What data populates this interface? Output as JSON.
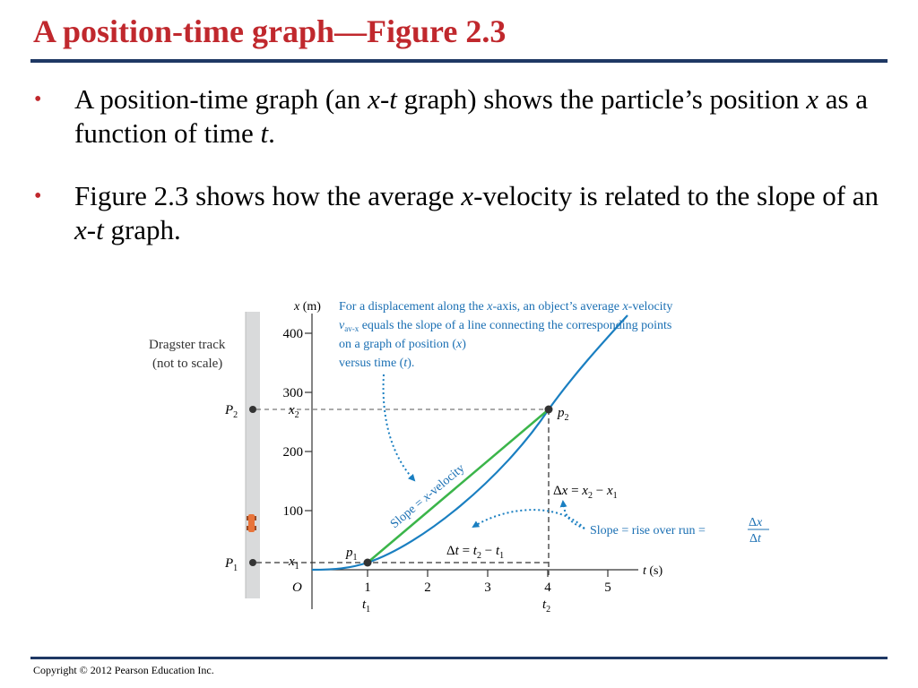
{
  "slide": {
    "title": "A position-time graph—Figure 2.3",
    "footer": "Copyright © 2012 Pearson Education Inc."
  },
  "bullets": [
    {
      "symbol": "•",
      "p1": "A position-time graph (an ",
      "p2": "x",
      "p3": "-",
      "p4": "t",
      "p5": " graph) shows the particle’s position ",
      "p6": "x",
      "p7": " as a function of time ",
      "p8": "t",
      "p9": "."
    },
    {
      "symbol": "•",
      "p1": "Figure 2.3 shows how the average ",
      "p2": "x",
      "p3": "-velocity is related to the slope of an ",
      "p4": "x",
      "p5": "-",
      "p6": "t",
      "p7": " graph."
    }
  ],
  "figure": {
    "track_label_line1": "Dragster track",
    "track_label_line2": "(not to scale)",
    "p1_label": "P",
    "p1_sub": "1",
    "p2_label": "P",
    "p2_sub": "2",
    "y_axis_var": "x",
    "y_axis_unit": "(m)",
    "x_axis_var": "t",
    "x_axis_unit": "(s)",
    "origin_label": "O",
    "y_ticks": [
      "100",
      "200",
      "300",
      "400"
    ],
    "x_ticks": [
      "1",
      "2",
      "3",
      "4",
      "5"
    ],
    "x1_label": "x",
    "x1_sub": "1",
    "x2_label": "x",
    "x2_sub": "2",
    "t1_label": "t",
    "t1_sub": "1",
    "t2_label": "t",
    "t2_sub": "2",
    "point1_label": "p",
    "point1_sub": "1",
    "point2_label": "p",
    "point2_sub": "2",
    "callout_line1a": "For a displacement along the ",
    "callout_line1b": "x",
    "callout_line1c": "-axis, an object’s average ",
    "callout_line1d": "x",
    "callout_line1e": "-velocity",
    "callout_line2a": "v",
    "callout_line2b": "av-x",
    "callout_line2c": " equals the slope of a line connecting the corresponding points",
    "callout_line3a": "on a graph of position (",
    "callout_line3b": "x",
    "callout_line3c": ")",
    "callout_line4a": "versus time (",
    "callout_line4b": "t",
    "callout_line4c": ").",
    "slope_label_a": "Slope = ",
    "slope_label_b": "x",
    "slope_label_c": "-velocity",
    "dx_label_a": "Δ",
    "dx_label_b": "x",
    "dx_label_c": " = ",
    "dx_label_d": "x",
    "dx_label_e": "2",
    "dx_label_f": " − ",
    "dx_label_g": "x",
    "dx_label_h": "1",
    "dt_label_a": "Δ",
    "dt_label_b": "t",
    "dt_label_c": " = ",
    "dt_label_d": "t",
    "dt_label_e": "2",
    "dt_label_f": " − ",
    "dt_label_g": "t",
    "dt_label_h": "1",
    "rise_label": "Slope = rise over run = ",
    "frac_num_a": "Δ",
    "frac_num_b": "x",
    "frac_den_a": "Δ",
    "frac_den_b": "t",
    "colors": {
      "curve": "#1a7fc1",
      "slope_line": "#3bb54a",
      "callout_text": "#1a6fb3",
      "title": "#c0282d",
      "rule": "#1f3864",
      "car": "#e8743b"
    }
  }
}
